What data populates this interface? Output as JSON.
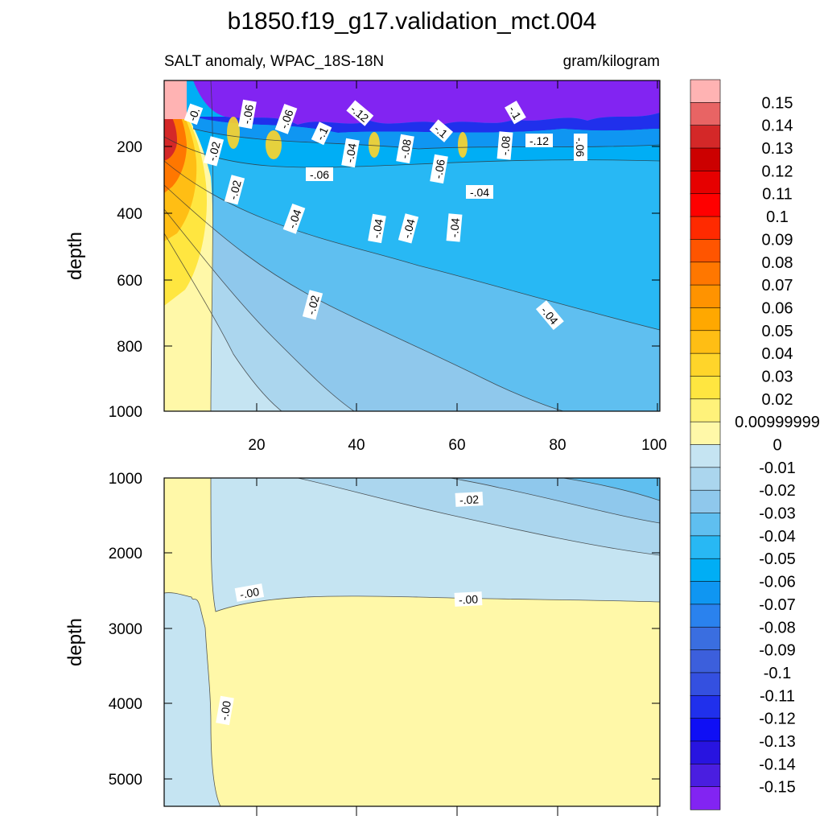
{
  "title": "b1850.f19_g17.validation_mct.004",
  "subtitle_left": "SALT anomaly, WPAC_18S-18N",
  "subtitle_right": "gram/kilogram",
  "chart_data": [
    {
      "type": "heatmap",
      "panel": "upper",
      "ylabel": "depth",
      "xlabel": "",
      "x_ticks": [
        20,
        40,
        60,
        80,
        100
      ],
      "y_ticks": [
        200,
        400,
        600,
        800,
        1000
      ],
      "xlim": [
        1,
        100
      ],
      "ylim": [
        1000,
        5
      ],
      "contour_labels": [
        "-0.",
        "-.02",
        "-.02",
        "-.06",
        "-.06",
        "-.06",
        "-.1",
        "-.12",
        "-.04",
        "-.08",
        "-.1",
        "-.06",
        "-.04",
        "-.1",
        "-.08",
        "-.12",
        "-.06",
        "-.04",
        "-.04",
        "-.04",
        "-.04",
        "-.02",
        "-.04"
      ]
    },
    {
      "type": "heatmap",
      "panel": "lower",
      "ylabel": "depth",
      "xlabel": "",
      "y_ticks": [
        1000,
        2000,
        3000,
        4000,
        5000
      ],
      "xlim": [
        1,
        100
      ],
      "ylim": [
        5350,
        1000
      ],
      "contour_labels": [
        "-.02",
        "-.00",
        "-.00",
        "-.00"
      ]
    }
  ],
  "colorbar": {
    "labels": [
      "0.15",
      "0.14",
      "0.13",
      "0.12",
      "0.11",
      "0.1",
      "0.09",
      "0.08",
      "0.07",
      "0.06",
      "0.05",
      "0.04",
      "0.03",
      "0.02",
      "0.00999999",
      "0",
      "-0.01",
      "-0.02",
      "-0.03",
      "-0.04",
      "-0.05",
      "-0.06",
      "-0.07",
      "-0.08",
      "-0.09",
      "-0.1",
      "-0.11",
      "-0.12",
      "-0.13",
      "-0.14",
      "-0.15"
    ],
    "colors": [
      "#FFB3B3",
      "#E86464",
      "#D42828",
      "#CC0000",
      "#E60000",
      "#FF0000",
      "#FF2A00",
      "#FF5500",
      "#FF7700",
      "#FF9300",
      "#FFA800",
      "#FFBE14",
      "#FFD52A",
      "#FFE640",
      "#FFF27A",
      "#FFF8A8",
      "#C5E4F2",
      "#ABD6EE",
      "#8FC8EC",
      "#5FBFF0",
      "#28B8F4",
      "#00AEF5",
      "#0F96F2",
      "#2A82EE",
      "#3A6EE0",
      "#3C5FDC",
      "#3450E0",
      "#2030EC",
      "#0F0FF5",
      "#2814E0",
      "#4A1EE0",
      "#8224F2"
    ]
  }
}
